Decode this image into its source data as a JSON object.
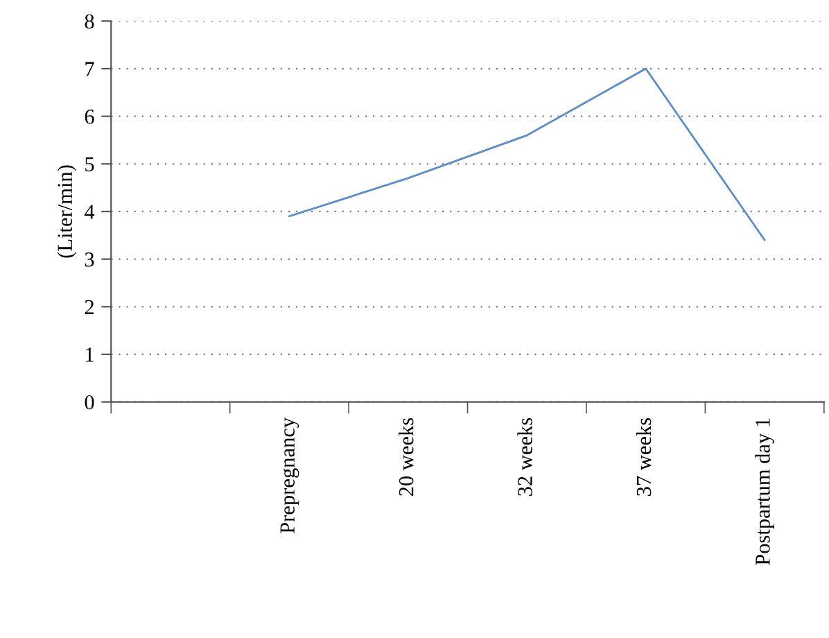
{
  "chart_data": {
    "type": "line",
    "ylabel": "(Liter/min)",
    "categories": [
      null,
      "Prepregnancy",
      "20 weeks",
      "32 weeks",
      "37 weeks",
      "Postpartum day 1"
    ],
    "series": [
      {
        "color": "#5b8ec8",
        "values": [
          null,
          3.9,
          4.7,
          5.6,
          7.0,
          3.4
        ]
      }
    ],
    "ylim": [
      0,
      8
    ],
    "yticks": [
      0,
      1,
      2,
      3,
      4,
      5,
      6,
      7,
      8
    ],
    "grid": "y",
    "marker": "none",
    "line_style": "solid",
    "legend": false
  }
}
